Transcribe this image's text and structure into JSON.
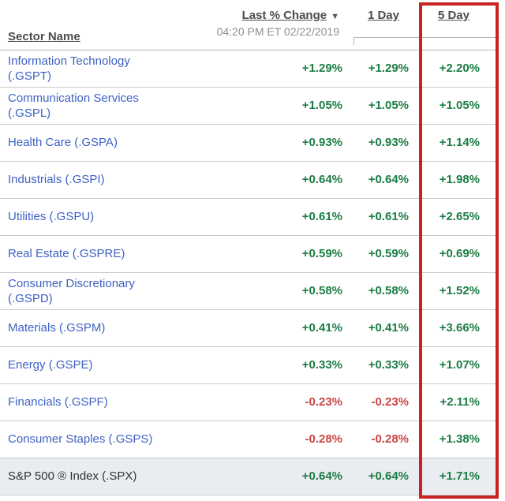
{
  "header": {
    "sector_col_label": "Sector Name",
    "last_change_label": "Last % Change",
    "sort_arrow": "▼",
    "timestamp": "04:20 PM ET 02/22/2019",
    "one_day_label": "1 Day",
    "five_day_label": "5 Day"
  },
  "colors": {
    "link_blue": "#3e62c4",
    "positive_green": "#1b7d44",
    "negative_red": "#cb4646",
    "highlight_box_red": "#c92323",
    "index_row_bg": "#e9edf2",
    "header_text": "#4c4c4c"
  },
  "rows": [
    {
      "name": "Information Technology (.GSPT)",
      "last_pct": "+1.29%",
      "one_day": "+1.29%",
      "five_day": "+2.20%",
      "is_index": false
    },
    {
      "name": "Communication Services (.GSPL)",
      "last_pct": "+1.05%",
      "one_day": "+1.05%",
      "five_day": "+1.05%",
      "is_index": false
    },
    {
      "name": "Health Care (.GSPA)",
      "last_pct": "+0.93%",
      "one_day": "+0.93%",
      "five_day": "+1.14%",
      "is_index": false
    },
    {
      "name": "Industrials (.GSPI)",
      "last_pct": "+0.64%",
      "one_day": "+0.64%",
      "five_day": "+1.98%",
      "is_index": false
    },
    {
      "name": "Utilities (.GSPU)",
      "last_pct": "+0.61%",
      "one_day": "+0.61%",
      "five_day": "+2.65%",
      "is_index": false
    },
    {
      "name": "Real Estate (.GSPRE)",
      "last_pct": "+0.59%",
      "one_day": "+0.59%",
      "five_day": "+0.69%",
      "is_index": false
    },
    {
      "name": "Consumer Discretionary (.GSPD)",
      "last_pct": "+0.58%",
      "one_day": "+0.58%",
      "five_day": "+1.52%",
      "is_index": false
    },
    {
      "name": "Materials (.GSPM)",
      "last_pct": "+0.41%",
      "one_day": "+0.41%",
      "five_day": "+3.66%",
      "is_index": false
    },
    {
      "name": "Energy (.GSPE)",
      "last_pct": "+0.33%",
      "one_day": "+0.33%",
      "five_day": "+1.07%",
      "is_index": false
    },
    {
      "name": "Financials (.GSPF)",
      "last_pct": "-0.23%",
      "one_day": "-0.23%",
      "five_day": "+2.11%",
      "is_index": false
    },
    {
      "name": "Consumer Staples (.GSPS)",
      "last_pct": "-0.28%",
      "one_day": "-0.28%",
      "five_day": "+1.38%",
      "is_index": false
    },
    {
      "name": "S&P 500 ® Index (.SPX)",
      "last_pct": "+0.64%",
      "one_day": "+0.64%",
      "five_day": "+1.71%",
      "is_index": true
    }
  ]
}
